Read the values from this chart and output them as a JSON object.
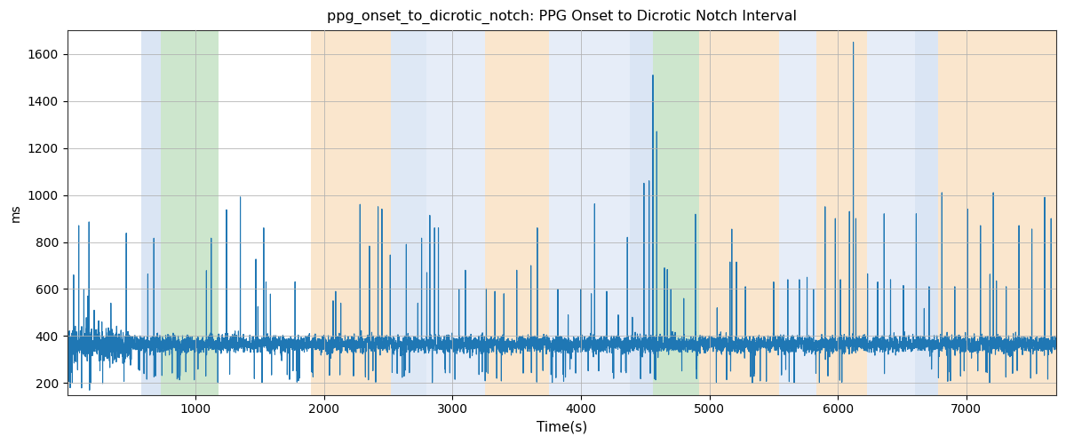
{
  "title": "ppg_onset_to_dicrotic_notch: PPG Onset to Dicrotic Notch Interval",
  "xlabel": "Time(s)",
  "ylabel": "ms",
  "xlim": [
    0,
    7700
  ],
  "ylim": [
    150,
    1700
  ],
  "yticks": [
    200,
    400,
    600,
    800,
    1000,
    1200,
    1400,
    1600
  ],
  "xticks": [
    1000,
    2000,
    3000,
    4000,
    5000,
    6000,
    7000
  ],
  "line_color": "#1f77b4",
  "line_width": 0.8,
  "background_color": "#ffffff",
  "grid_color": "#b0b0b0",
  "colored_bands": [
    {
      "xmin": 580,
      "xmax": 730,
      "color": "#aec6e8",
      "alpha": 0.45
    },
    {
      "xmin": 730,
      "xmax": 1180,
      "color": "#90c890",
      "alpha": 0.45
    },
    {
      "xmin": 1900,
      "xmax": 2520,
      "color": "#f5c890",
      "alpha": 0.45
    },
    {
      "xmin": 2520,
      "xmax": 2800,
      "color": "#aec6e8",
      "alpha": 0.4
    },
    {
      "xmin": 2800,
      "xmax": 3250,
      "color": "#aec6e8",
      "alpha": 0.3
    },
    {
      "xmin": 3250,
      "xmax": 3750,
      "color": "#f5c890",
      "alpha": 0.45
    },
    {
      "xmin": 3750,
      "xmax": 4380,
      "color": "#aec6e8",
      "alpha": 0.3
    },
    {
      "xmin": 4380,
      "xmax": 4560,
      "color": "#aec6e8",
      "alpha": 0.45
    },
    {
      "xmin": 4560,
      "xmax": 4920,
      "color": "#90c890",
      "alpha": 0.45
    },
    {
      "xmin": 4920,
      "xmax": 5540,
      "color": "#f5c890",
      "alpha": 0.45
    },
    {
      "xmin": 5540,
      "xmax": 5830,
      "color": "#aec6e8",
      "alpha": 0.3
    },
    {
      "xmin": 5830,
      "xmax": 6230,
      "color": "#f5c890",
      "alpha": 0.45
    },
    {
      "xmin": 6230,
      "xmax": 6600,
      "color": "#aec6e8",
      "alpha": 0.3
    },
    {
      "xmin": 6600,
      "xmax": 6780,
      "color": "#aec6e8",
      "alpha": 0.45
    },
    {
      "xmin": 6780,
      "xmax": 7700,
      "color": "#f5c890",
      "alpha": 0.45
    }
  ],
  "base_value": 365,
  "noise_std": 18,
  "dip_prob": 0.018,
  "spike_prob": 0.003,
  "seed": 1234
}
